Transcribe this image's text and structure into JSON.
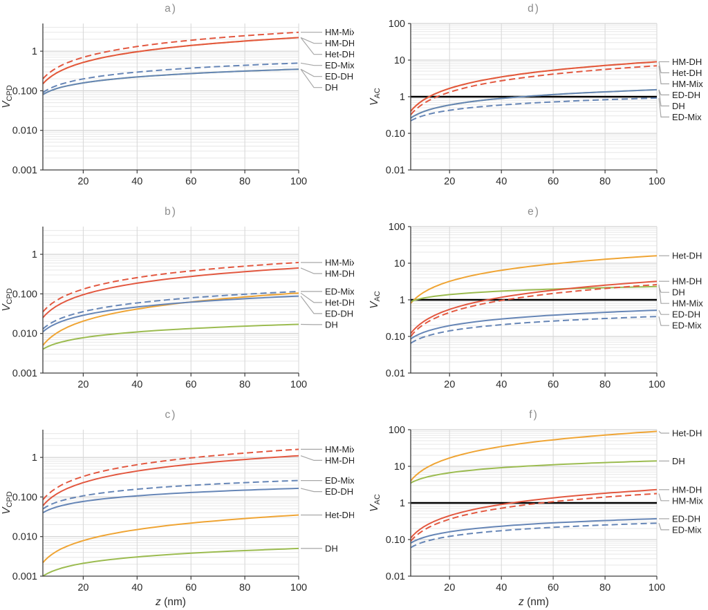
{
  "figure": {
    "xlabel": {
      "var": "z",
      "unit": " (nm)"
    },
    "x": [
      5,
      10,
      20,
      30,
      40,
      50,
      60,
      70,
      80,
      90,
      100
    ],
    "xlim": [
      5,
      100
    ],
    "xticks": [
      20,
      40,
      60,
      80,
      100
    ],
    "colors": {
      "red": "#e2573f",
      "blue": "#6585b6",
      "orange": "#efa433",
      "green": "#9bbb4f"
    },
    "series_styles": {
      "HM-Mix": {
        "color": "red",
        "dashed": true
      },
      "HM-DH": {
        "color": "red",
        "dashed": false
      },
      "Het-DH": {
        "color": "orange",
        "dashed": false
      },
      "ED-Mix": {
        "color": "blue",
        "dashed": true
      },
      "ED-DH": {
        "color": "blue",
        "dashed": false
      },
      "DH": {
        "color": "green",
        "dashed": false
      }
    },
    "legend_position": "right-of-plot",
    "grid": "log-minor-and-major"
  },
  "chart_data": [
    {
      "id": "a",
      "title": "a)",
      "type": "line",
      "row": 0,
      "col": 0,
      "ylabel": {
        "main": "V",
        "sub": "CPD"
      },
      "ylim": [
        0.001,
        5
      ],
      "hline": null,
      "yticks": [
        {
          "v": 0.001,
          "label": "0.001"
        },
        {
          "v": 0.01,
          "label": "0.010"
        },
        {
          "v": 0.1,
          "label": "0.100"
        },
        {
          "v": 1,
          "label": "1"
        }
      ],
      "series": [
        {
          "name": "Het-DH",
          "values": [
            0.15,
            0.279,
            0.52,
            0.748,
            0.967,
            1.181,
            1.391,
            1.597,
            1.8,
            2.001,
            2.2
          ]
        },
        {
          "name": "DH",
          "values": [
            0.08,
            0.113,
            0.158,
            0.193,
            0.223,
            0.249,
            0.272,
            0.294,
            0.314,
            0.332,
            0.35
          ]
        },
        {
          "name": "ED-DH",
          "values": [
            0.08,
            0.113,
            0.158,
            0.193,
            0.223,
            0.249,
            0.272,
            0.294,
            0.314,
            0.332,
            0.35
          ]
        },
        {
          "name": "ED-Mix",
          "values": [
            0.09,
            0.134,
            0.199,
            0.251,
            0.296,
            0.336,
            0.373,
            0.408,
            0.44,
            0.471,
            0.5
          ]
        },
        {
          "name": "HM-DH",
          "values": [
            0.15,
            0.279,
            0.52,
            0.748,
            0.967,
            1.181,
            1.391,
            1.597,
            1.8,
            2.001,
            2.2
          ]
        },
        {
          "name": "HM-Mix",
          "values": [
            0.2,
            0.374,
            0.7,
            1.011,
            1.31,
            1.603,
            1.889,
            2.171,
            2.451,
            2.725,
            3.0
          ]
        }
      ],
      "labels": [
        "HM-Mix",
        "HM-DH",
        "Het-DH",
        "ED-Mix",
        "ED-DH",
        "DH"
      ]
    },
    {
      "id": "b",
      "title": "b)",
      "type": "line",
      "row": 1,
      "col": 0,
      "ylabel": {
        "main": "V",
        "sub": "CPD"
      },
      "ylim": [
        0.001,
        5
      ],
      "hline": null,
      "yticks": [
        {
          "v": 0.001,
          "label": "0.001"
        },
        {
          "v": 0.01,
          "label": "0.010"
        },
        {
          "v": 0.1,
          "label": "0.100"
        },
        {
          "v": 1,
          "label": "1"
        }
      ],
      "series": [
        {
          "name": "Het-DH",
          "values": [
            0.005,
            0.0101,
            0.0205,
            0.0309,
            0.0413,
            0.0519,
            0.0625,
            0.0731,
            0.0836,
            0.0943,
            0.105
          ]
        },
        {
          "name": "DH",
          "values": [
            0.004,
            0.0056,
            0.0078,
            0.0095,
            0.0109,
            0.0122,
            0.0133,
            0.0143,
            0.0153,
            0.0162,
            0.017
          ]
        },
        {
          "name": "ED-DH",
          "values": [
            0.011,
            0.0178,
            0.0288,
            0.0382,
            0.0466,
            0.0544,
            0.0618,
            0.0687,
            0.0754,
            0.0818,
            0.088
          ]
        },
        {
          "name": "ED-Mix",
          "values": [
            0.013,
            0.0215,
            0.0356,
            0.0479,
            0.059,
            0.0694,
            0.0793,
            0.0888,
            0.0978,
            0.1065,
            0.115
          ]
        },
        {
          "name": "HM-DH",
          "values": [
            0.025,
            0.0488,
            0.0953,
            0.1409,
            0.186,
            0.231,
            0.275,
            0.32,
            0.363,
            0.407,
            0.45
          ]
        },
        {
          "name": "HM-Mix",
          "values": [
            0.035,
            0.068,
            0.132,
            0.195,
            0.257,
            0.319,
            0.38,
            0.441,
            0.501,
            0.561,
            0.62
          ]
        }
      ],
      "labels": [
        "HM-Mix",
        "HM-DH",
        "ED-Mix",
        "Het-DH",
        "ED-DH",
        "DH"
      ]
    },
    {
      "id": "c",
      "title": "c)",
      "type": "line",
      "row": 2,
      "col": 0,
      "ylabel": {
        "main": "V",
        "sub": "CPD"
      },
      "ylim": [
        0.001,
        5
      ],
      "hline": null,
      "yticks": [
        {
          "v": 0.001,
          "label": "0.001"
        },
        {
          "v": 0.01,
          "label": "0.010"
        },
        {
          "v": 0.1,
          "label": "0.100"
        },
        {
          "v": 1,
          "label": "1"
        }
      ],
      "series": [
        {
          "name": "Het-DH",
          "values": [
            0.0022,
            0.0042,
            0.0079,
            0.0115,
            0.015,
            0.0185,
            0.0219,
            0.0252,
            0.0285,
            0.0318,
            0.035
          ]
        },
        {
          "name": "DH",
          "values": [
            0.001,
            0.00145,
            0.00211,
            0.00262,
            0.00306,
            0.00344,
            0.0038,
            0.00413,
            0.00443,
            0.00472,
            0.005
          ]
        },
        {
          "name": "ED-DH",
          "values": [
            0.04,
            0.0555,
            0.077,
            0.0933,
            0.1069,
            0.1189,
            0.1295,
            0.1394,
            0.1484,
            0.157,
            0.165
          ]
        },
        {
          "name": "ED-Mix",
          "values": [
            0.05,
            0.0732,
            0.107,
            0.134,
            0.157,
            0.178,
            0.196,
            0.214,
            0.23,
            0.246,
            0.26
          ]
        },
        {
          "name": "HM-DH",
          "values": [
            0.06,
            0.118,
            0.23,
            0.342,
            0.452,
            0.561,
            0.67,
            0.778,
            0.886,
            0.993,
            1.1
          ]
        },
        {
          "name": "HM-Mix",
          "values": [
            0.085,
            0.168,
            0.331,
            0.492,
            0.652,
            0.811,
            0.97,
            1.128,
            1.285,
            1.443,
            1.6
          ]
        }
      ],
      "labels": [
        "HM-Mix",
        "HM-DH",
        "ED-Mix",
        "ED-DH",
        "Het-DH",
        "DH"
      ]
    },
    {
      "id": "d",
      "title": "d)",
      "type": "line",
      "row": 0,
      "col": 1,
      "ylabel": {
        "main": "V",
        "sub": "AC"
      },
      "ylim": [
        0.01,
        100
      ],
      "hline": 1,
      "yticks": [
        {
          "v": 0.01,
          "label": "0.01"
        },
        {
          "v": 0.1,
          "label": "0.10"
        },
        {
          "v": 1,
          "label": "1"
        },
        {
          "v": 10,
          "label": "10"
        },
        {
          "v": 100,
          "label": "100"
        }
      ],
      "series": [
        {
          "name": "Het-DH",
          "values": [
            0.4,
            0.822,
            1.69,
            2.575,
            3.473,
            4.38,
            5.292,
            6.212,
            7.136,
            8.064,
            9.0
          ]
        },
        {
          "name": "DH",
          "values": [
            0.26,
            0.393,
            0.594,
            0.756,
            0.899,
            1.026,
            1.144,
            1.254,
            1.358,
            1.456,
            1.55
          ]
        },
        {
          "name": "ED-DH",
          "values": [
            0.26,
            0.393,
            0.594,
            0.756,
            0.899,
            1.026,
            1.144,
            1.254,
            1.358,
            1.456,
            1.55
          ]
        },
        {
          "name": "ED-Mix",
          "values": [
            0.22,
            0.306,
            0.427,
            0.518,
            0.594,
            0.661,
            0.721,
            0.777,
            0.827,
            0.875,
            0.92
          ]
        },
        {
          "name": "HM-DH",
          "values": [
            0.4,
            0.822,
            1.69,
            2.575,
            3.473,
            4.38,
            5.292,
            6.212,
            7.136,
            8.064,
            9.0
          ]
        },
        {
          "name": "HM-Mix",
          "values": [
            0.32,
            0.653,
            1.334,
            2.026,
            2.725,
            3.427,
            4.138,
            4.848,
            5.565,
            6.282,
            7.0
          ]
        }
      ],
      "labels": [
        "HM-DH",
        "Het-DH",
        "HM-Mix",
        "ED-DH",
        "DH",
        "ED-Mix"
      ]
    },
    {
      "id": "e",
      "title": "e)",
      "type": "line",
      "row": 1,
      "col": 1,
      "ylabel": {
        "main": "V",
        "sub": "AC"
      },
      "ylim": [
        0.01,
        100
      ],
      "hline": 1,
      "yticks": [
        {
          "v": 0.01,
          "label": "0.01"
        },
        {
          "v": 0.1,
          "label": "0.10"
        },
        {
          "v": 1,
          "label": "1"
        },
        {
          "v": 10,
          "label": "10"
        },
        {
          "v": 100,
          "label": "100"
        }
      ],
      "series": [
        {
          "name": "Het-DH",
          "values": [
            0.8,
            1.6,
            3.2,
            4.8,
            6.4,
            8.0,
            9.6,
            11.2,
            12.8,
            14.4,
            16.0
          ]
        },
        {
          "name": "DH",
          "values": [
            0.9,
            1.119,
            1.39,
            1.578,
            1.727,
            1.852,
            1.961,
            2.058,
            2.147,
            2.227,
            2.3
          ]
        },
        {
          "name": "ED-DH",
          "values": [
            0.085,
            0.129,
            0.197,
            0.251,
            0.299,
            0.342,
            0.381,
            0.419,
            0.455,
            0.488,
            0.52
          ]
        },
        {
          "name": "ED-Mix",
          "values": [
            0.065,
            0.096,
            0.142,
            0.178,
            0.209,
            0.238,
            0.263,
            0.286,
            0.309,
            0.33,
            0.35
          ]
        },
        {
          "name": "HM-DH",
          "values": [
            0.12,
            0.256,
            0.548,
            0.856,
            1.172,
            1.496,
            1.83,
            2.166,
            2.508,
            2.851,
            3.2
          ]
        },
        {
          "name": "HM-Mix",
          "values": [
            0.1,
            0.2125,
            0.4516,
            0.702,
            0.96,
            1.223,
            1.492,
            1.764,
            2.04,
            2.32,
            2.6
          ]
        }
      ],
      "labels": [
        "Het-DH",
        "HM-DH",
        "DH",
        "HM-Mix",
        "ED-DH",
        "ED-Mix"
      ]
    },
    {
      "id": "f",
      "title": "f)",
      "type": "line",
      "row": 2,
      "col": 1,
      "ylabel": {
        "main": "V",
        "sub": "AC"
      },
      "ylim": [
        0.01,
        100
      ],
      "hline": 1,
      "yticks": [
        {
          "v": 0.01,
          "label": "0.01"
        },
        {
          "v": 0.1,
          "label": "0.10"
        },
        {
          "v": 1,
          "label": "1"
        },
        {
          "v": 10,
          "label": "10"
        },
        {
          "v": 100,
          "label": "100"
        }
      ],
      "series": [
        {
          "name": "Het-DH",
          "values": [
            4.0,
            8.22,
            16.9,
            25.75,
            34.73,
            43.8,
            52.9,
            62.1,
            71.4,
            80.6,
            90.0
          ]
        },
        {
          "name": "DH",
          "values": [
            3.5,
            4.82,
            6.65,
            8.02,
            9.16,
            10.16,
            11.05,
            11.87,
            12.64,
            13.35,
            14.0
          ]
        },
        {
          "name": "ED-DH",
          "values": [
            0.08,
            0.114,
            0.1625,
            0.2,
            0.2315,
            0.26,
            0.285,
            0.308,
            0.33,
            0.351,
            0.37
          ]
        },
        {
          "name": "ED-Mix",
          "values": [
            0.06,
            0.0857,
            0.1223,
            0.1507,
            0.1747,
            0.1961,
            0.2153,
            0.2332,
            0.2498,
            0.2654,
            0.28
          ]
        },
        {
          "name": "HM-DH",
          "values": [
            0.11,
            0.222,
            0.449,
            0.679,
            0.908,
            1.139,
            1.371,
            1.603,
            1.835,
            2.068,
            2.3
          ]
        },
        {
          "name": "HM-Mix",
          "values": [
            0.09,
            0.18,
            0.36,
            0.54,
            0.72,
            0.9,
            1.08,
            1.26,
            1.44,
            1.62,
            1.8
          ]
        }
      ],
      "labels": [
        "Het-DH",
        "DH",
        "HM-DH",
        "HM-Mix",
        "ED-DH",
        "ED-Mix"
      ]
    }
  ]
}
